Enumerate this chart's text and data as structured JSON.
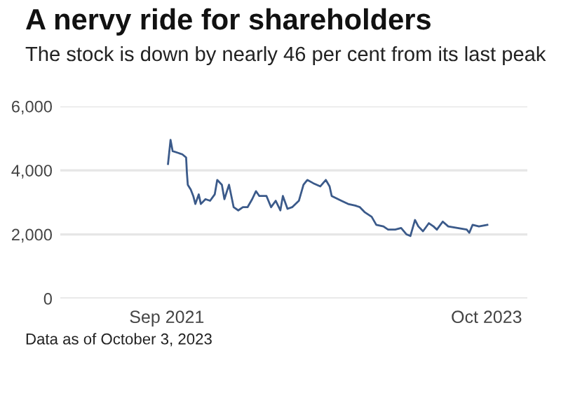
{
  "chart_data": {
    "type": "line",
    "title": "A nervy ride for shareholders",
    "subtitle": "The stock is down by nearly 46 per cent from its last peak",
    "annotations": [
      "Data as of October 3, 2023"
    ],
    "series": [
      {
        "color": "#3b5a8a",
        "x": [
          "2021-09-04",
          "2021-09-10",
          "2021-09-15",
          "2021-09-27",
          "2021-10-08",
          "2021-10-17",
          "2021-10-19",
          "2021-10-21",
          "2021-10-28",
          "2021-11-03",
          "2021-11-08",
          "2021-11-16",
          "2021-11-21",
          "2021-12-02",
          "2021-12-13",
          "2021-12-24",
          "2021-12-30",
          "2022-01-10",
          "2022-01-16",
          "2022-01-27",
          "2022-02-07",
          "2022-02-18",
          "2022-03-01",
          "2022-03-12",
          "2022-03-23",
          "2022-04-01",
          "2022-04-09",
          "2022-04-26",
          "2022-05-07",
          "2022-05-18",
          "2022-05-29",
          "2022-06-04",
          "2022-06-15",
          "2022-06-26",
          "2022-07-12",
          "2022-07-23",
          "2022-08-01",
          "2022-08-15",
          "2022-09-01",
          "2022-09-14",
          "2022-09-23",
          "2022-09-28",
          "2022-10-21",
          "2022-11-06",
          "2022-11-23",
          "2022-12-04",
          "2022-12-15",
          "2023-01-01",
          "2023-01-12",
          "2023-01-29",
          "2023-02-09",
          "2023-02-26",
          "2023-03-12",
          "2023-03-25",
          "2023-04-03",
          "2023-04-14",
          "2023-04-22",
          "2023-05-03",
          "2023-05-17",
          "2023-05-28",
          "2023-06-05",
          "2023-06-19",
          "2023-07-02",
          "2023-07-24",
          "2023-08-15",
          "2023-08-21",
          "2023-08-29",
          "2023-09-13",
          "2023-10-03"
        ],
        "values": [
          4200,
          4950,
          4600,
          4550,
          4500,
          4400,
          3900,
          3550,
          3400,
          3200,
          2950,
          3250,
          2950,
          3100,
          3050,
          3250,
          3700,
          3550,
          3100,
          3550,
          2850,
          2750,
          2850,
          2850,
          3100,
          3350,
          3200,
          3200,
          2850,
          3050,
          2750,
          3200,
          2800,
          2850,
          3050,
          3550,
          3700,
          3600,
          3500,
          3700,
          3500,
          3200,
          3050,
          2950,
          2900,
          2850,
          2700,
          2550,
          2300,
          2250,
          2150,
          2150,
          2200,
          2000,
          1950,
          2450,
          2250,
          2100,
          2350,
          2250,
          2150,
          2400,
          2250,
          2200,
          2150,
          2050,
          2300,
          2250,
          2300
        ]
      }
    ],
    "xlim": [
      "2020-12-22",
      "2024-01-06"
    ],
    "xticks": [
      {
        "value": "2021-09-01",
        "label": "Sep 2021"
      },
      {
        "value": "2023-10-01",
        "label": "Oct 2023"
      }
    ],
    "ylim": [
      0,
      6000
    ],
    "yticks": [
      {
        "value": 0,
        "label": "0"
      },
      {
        "value": 2000,
        "label": "2,000"
      },
      {
        "value": 4000,
        "label": "4,000"
      },
      {
        "value": 6000,
        "label": "6,000"
      }
    ],
    "grid": "y",
    "legend": false
  }
}
